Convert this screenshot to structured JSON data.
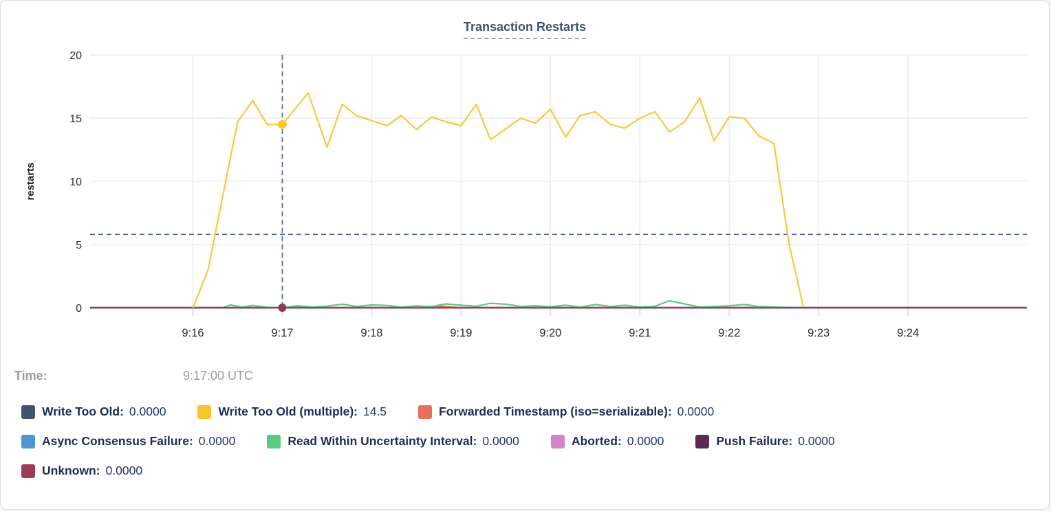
{
  "time_row": {
    "label": "Time:",
    "value": "9:17:00 UTC"
  },
  "chart_data": {
    "type": "line",
    "title": "Transaction Restarts",
    "xlabel": "",
    "ylabel": "restarts",
    "ylim": [
      0,
      20
    ],
    "yticks": [
      0,
      5,
      10,
      15,
      20
    ],
    "xticks": [
      {
        "t": 16,
        "label": "9:16"
      },
      {
        "t": 17,
        "label": "9:17"
      },
      {
        "t": 18,
        "label": "9:18"
      },
      {
        "t": 19,
        "label": "9:19"
      },
      {
        "t": 20,
        "label": "9:20"
      },
      {
        "t": 21,
        "label": "9:21"
      },
      {
        "t": 22,
        "label": "9:22"
      },
      {
        "t": 23,
        "label": "9:23"
      },
      {
        "t": 24,
        "label": "9:24"
      }
    ],
    "x_domain_minutes_after_9": [
      14.85,
      25.33
    ],
    "grid": true,
    "legend_position": "bottom",
    "hover": {
      "time_minutes": 17.0,
      "time_label": "9:17:00 UTC",
      "hline_value": 5.8,
      "dot_series": [
        "Write Too Old (multiple)",
        "Unknown"
      ],
      "dot_values": [
        14.5,
        0
      ]
    },
    "series": [
      {
        "name": "Write Too Old",
        "value_label": "0.0000",
        "color": "#41536e",
        "points": [
          [
            14.85,
            0
          ],
          [
            25.33,
            0
          ]
        ]
      },
      {
        "name": "Write Too Old (multiple)",
        "value_label": "14.5",
        "color": "#f8c32c",
        "line_color": "#fcc63c",
        "points": [
          [
            16.0,
            0
          ],
          [
            16.17,
            3.0
          ],
          [
            16.5,
            14.7
          ],
          [
            16.67,
            16.4
          ],
          [
            16.83,
            14.5
          ],
          [
            17.0,
            14.5
          ],
          [
            17.29,
            17.0
          ],
          [
            17.5,
            12.7
          ],
          [
            17.67,
            16.1
          ],
          [
            17.83,
            15.2
          ],
          [
            18.0,
            14.8
          ],
          [
            18.17,
            14.4
          ],
          [
            18.33,
            15.2
          ],
          [
            18.5,
            14.1
          ],
          [
            18.67,
            15.1
          ],
          [
            18.83,
            14.7
          ],
          [
            19.0,
            14.4
          ],
          [
            19.17,
            16.1
          ],
          [
            19.33,
            13.3
          ],
          [
            19.67,
            15.0
          ],
          [
            19.83,
            14.6
          ],
          [
            20.0,
            15.7
          ],
          [
            20.17,
            13.5
          ],
          [
            20.33,
            15.2
          ],
          [
            20.5,
            15.5
          ],
          [
            20.67,
            14.5
          ],
          [
            20.83,
            14.2
          ],
          [
            21.0,
            15.0
          ],
          [
            21.17,
            15.5
          ],
          [
            21.33,
            13.9
          ],
          [
            21.5,
            14.7
          ],
          [
            21.67,
            16.6
          ],
          [
            21.83,
            13.2
          ],
          [
            22.0,
            15.1
          ],
          [
            22.17,
            15.0
          ],
          [
            22.33,
            13.6
          ],
          [
            22.5,
            13.0
          ],
          [
            22.67,
            5.0
          ],
          [
            22.83,
            0.05
          ]
        ]
      },
      {
        "name": "Forwarded Timestamp (iso=serializable)",
        "value_label": "0.0000",
        "color": "#ea6e5e",
        "points": [
          [
            14.85,
            0
          ],
          [
            18.55,
            0
          ],
          [
            18.7,
            0.13
          ],
          [
            18.85,
            0.08
          ],
          [
            19.0,
            0
          ],
          [
            25.33,
            0
          ]
        ]
      },
      {
        "name": "Async Consensus Failure",
        "value_label": "0.0000",
        "color": "#4f95d0",
        "points": [
          [
            14.85,
            0
          ],
          [
            25.33,
            0
          ]
        ]
      },
      {
        "name": "Read Within Uncertainty Interval",
        "value_label": "0.0000",
        "color": "#57cb80",
        "points": [
          [
            14.85,
            0
          ],
          [
            16.33,
            0
          ],
          [
            16.42,
            0.22
          ],
          [
            16.55,
            0.05
          ],
          [
            16.67,
            0.18
          ],
          [
            16.85,
            0.02
          ],
          [
            17.0,
            0
          ],
          [
            17.17,
            0.16
          ],
          [
            17.33,
            0.05
          ],
          [
            17.5,
            0.12
          ],
          [
            17.67,
            0.28
          ],
          [
            17.83,
            0.1
          ],
          [
            18.0,
            0.22
          ],
          [
            18.17,
            0.18
          ],
          [
            18.33,
            0.05
          ],
          [
            18.5,
            0.15
          ],
          [
            18.67,
            0.08
          ],
          [
            18.83,
            0.3
          ],
          [
            19.0,
            0.2
          ],
          [
            19.17,
            0.12
          ],
          [
            19.33,
            0.35
          ],
          [
            19.5,
            0.28
          ],
          [
            19.67,
            0.1
          ],
          [
            19.83,
            0.15
          ],
          [
            20.0,
            0.08
          ],
          [
            20.17,
            0.2
          ],
          [
            20.33,
            0.05
          ],
          [
            20.5,
            0.25
          ],
          [
            20.67,
            0.1
          ],
          [
            20.83,
            0.2
          ],
          [
            21.0,
            0.05
          ],
          [
            21.17,
            0.12
          ],
          [
            21.33,
            0.55
          ],
          [
            21.5,
            0.3
          ],
          [
            21.67,
            0.05
          ],
          [
            21.83,
            0.1
          ],
          [
            22.0,
            0.15
          ],
          [
            22.17,
            0.25
          ],
          [
            22.33,
            0.1
          ],
          [
            22.5,
            0.05
          ],
          [
            22.7,
            0.02
          ],
          [
            22.9,
            0
          ],
          [
            25.33,
            0
          ]
        ]
      },
      {
        "name": "Aborted",
        "value_label": "0.0000",
        "color": "#d684ca",
        "points": [
          [
            14.85,
            0
          ],
          [
            25.33,
            0
          ]
        ]
      },
      {
        "name": "Push Failure",
        "value_label": "0.0000",
        "color": "#5c2a52",
        "points": [
          [
            14.85,
            0
          ],
          [
            25.33,
            0
          ]
        ]
      },
      {
        "name": "Unknown",
        "value_label": "0.0000",
        "color": "#9c3e56",
        "points": [
          [
            14.85,
            0
          ],
          [
            25.33,
            0
          ]
        ]
      }
    ],
    "draw_order": [
      0,
      3,
      5,
      6,
      2,
      4,
      7,
      1
    ],
    "legend_rows": [
      [
        0,
        1,
        2
      ],
      [
        3,
        4,
        5,
        6
      ],
      [
        7
      ]
    ],
    "colors": {
      "grid": "#ececec",
      "tick_text": "#2c2c2c",
      "axis_label": "#1f1f1f",
      "hover_dashed": "#53688c",
      "title": "#3e5174",
      "unknown_dot": "#8f3a52"
    }
  }
}
